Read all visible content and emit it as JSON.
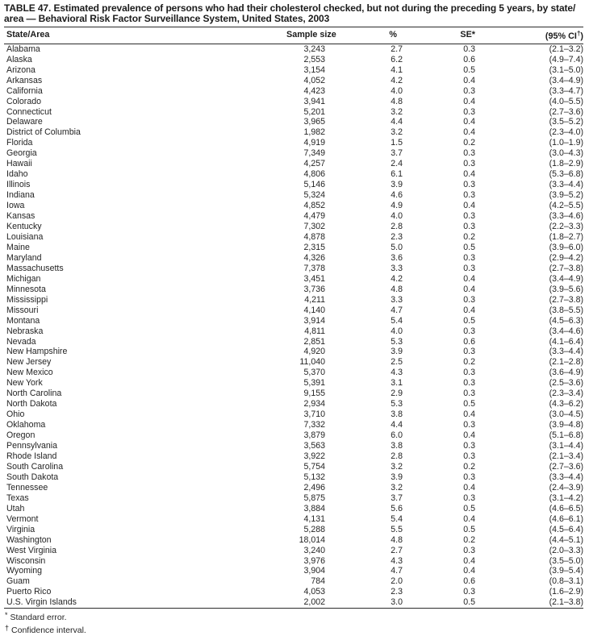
{
  "table": {
    "title_line1": "TABLE 47. Estimated prevalence of persons who had their cholesterol checked, but not during the preceding 5 years, by state/",
    "title_line2": "area — Behavioral Risk Factor Surveillance System, United States, 2003",
    "header": {
      "state": "State/Area",
      "sample": "Sample size",
      "pct": "%",
      "se": "SE*",
      "ci_prefix": "(95% CI",
      "ci_sup": "†",
      "ci_suffix": ")"
    },
    "rows": [
      [
        "Alabama",
        "3,243",
        "2.7",
        "0.3",
        "(2.1–3.2)"
      ],
      [
        "Alaska",
        "2,553",
        "6.2",
        "0.6",
        "(4.9–7.4)"
      ],
      [
        "Arizona",
        "3,154",
        "4.1",
        "0.5",
        "(3.1–5.0)"
      ],
      [
        "Arkansas",
        "4,052",
        "4.2",
        "0.4",
        "(3.4–4.9)"
      ],
      [
        "California",
        "4,423",
        "4.0",
        "0.3",
        "(3.3–4.7)"
      ],
      [
        "Colorado",
        "3,941",
        "4.8",
        "0.4",
        "(4.0–5.5)"
      ],
      [
        "Connecticut",
        "5,201",
        "3.2",
        "0.3",
        "(2.7–3.6)"
      ],
      [
        "Delaware",
        "3,965",
        "4.4",
        "0.4",
        "(3.5–5.2)"
      ],
      [
        "District of Columbia",
        "1,982",
        "3.2",
        "0.4",
        "(2.3–4.0)"
      ],
      [
        "Florida",
        "4,919",
        "1.5",
        "0.2",
        "(1.0–1.9)"
      ],
      [
        "Georgia",
        "7,349",
        "3.7",
        "0.3",
        "(3.0–4.3)"
      ],
      [
        "Hawaii",
        "4,257",
        "2.4",
        "0.3",
        "(1.8–2.9)"
      ],
      [
        "Idaho",
        "4,806",
        "6.1",
        "0.4",
        "(5.3–6.8)"
      ],
      [
        "Illinois",
        "5,146",
        "3.9",
        "0.3",
        "(3.3–4.4)"
      ],
      [
        "Indiana",
        "5,324",
        "4.6",
        "0.3",
        "(3.9–5.2)"
      ],
      [
        "Iowa",
        "4,852",
        "4.9",
        "0.4",
        "(4.2–5.5)"
      ],
      [
        "Kansas",
        "4,479",
        "4.0",
        "0.3",
        "(3.3–4.6)"
      ],
      [
        "Kentucky",
        "7,302",
        "2.8",
        "0.3",
        "(2.2–3.3)"
      ],
      [
        "Louisiana",
        "4,878",
        "2.3",
        "0.2",
        "(1.8–2.7)"
      ],
      [
        "Maine",
        "2,315",
        "5.0",
        "0.5",
        "(3.9–6.0)"
      ],
      [
        "Maryland",
        "4,326",
        "3.6",
        "0.3",
        "(2.9–4.2)"
      ],
      [
        "Massachusetts",
        "7,378",
        "3.3",
        "0.3",
        "(2.7–3.8)"
      ],
      [
        "Michigan",
        "3,451",
        "4.2",
        "0.4",
        "(3.4–4.9)"
      ],
      [
        "Minnesota",
        "3,736",
        "4.8",
        "0.4",
        "(3.9–5.6)"
      ],
      [
        "Mississippi",
        "4,211",
        "3.3",
        "0.3",
        "(2.7–3.8)"
      ],
      [
        "Missouri",
        "4,140",
        "4.7",
        "0.4",
        "(3.8–5.5)"
      ],
      [
        "Montana",
        "3,914",
        "5.4",
        "0.5",
        "(4.5–6.3)"
      ],
      [
        "Nebraska",
        "4,811",
        "4.0",
        "0.3",
        "(3.4–4.6)"
      ],
      [
        "Nevada",
        "2,851",
        "5.3",
        "0.6",
        "(4.1–6.4)"
      ],
      [
        "New Hampshire",
        "4,920",
        "3.9",
        "0.3",
        "(3.3–4.4)"
      ],
      [
        "New Jersey",
        "11,040",
        "2.5",
        "0.2",
        "(2.1–2.8)"
      ],
      [
        "New Mexico",
        "5,370",
        "4.3",
        "0.3",
        "(3.6–4.9)"
      ],
      [
        "New York",
        "5,391",
        "3.1",
        "0.3",
        "(2.5–3.6)"
      ],
      [
        "North Carolina",
        "9,155",
        "2.9",
        "0.3",
        "(2.3–3.4)"
      ],
      [
        "North Dakota",
        "2,934",
        "5.3",
        "0.5",
        "(4.3–6.2)"
      ],
      [
        "Ohio",
        "3,710",
        "3.8",
        "0.4",
        "(3.0–4.5)"
      ],
      [
        "Oklahoma",
        "7,332",
        "4.4",
        "0.3",
        "(3.9–4.8)"
      ],
      [
        "Oregon",
        "3,879",
        "6.0",
        "0.4",
        "(5.1–6.8)"
      ],
      [
        "Pennsylvania",
        "3,563",
        "3.8",
        "0.3",
        "(3.1–4.4)"
      ],
      [
        "Rhode Island",
        "3,922",
        "2.8",
        "0.3",
        "(2.1–3.4)"
      ],
      [
        "South Carolina",
        "5,754",
        "3.2",
        "0.2",
        "(2.7–3.6)"
      ],
      [
        "South Dakota",
        "5,132",
        "3.9",
        "0.3",
        "(3.3–4.4)"
      ],
      [
        "Tennessee",
        "2,496",
        "3.2",
        "0.4",
        "(2.4–3.9)"
      ],
      [
        "Texas",
        "5,875",
        "3.7",
        "0.3",
        "(3.1–4.2)"
      ],
      [
        "Utah",
        "3,884",
        "5.6",
        "0.5",
        "(4.6–6.5)"
      ],
      [
        "Vermont",
        "4,131",
        "5.4",
        "0.4",
        "(4.6–6.1)"
      ],
      [
        "Virginia",
        "5,288",
        "5.5",
        "0.5",
        "(4.5–6.4)"
      ],
      [
        "Washington",
        "18,014",
        "4.8",
        "0.2",
        "(4.4–5.1)"
      ],
      [
        "West Virginia",
        "3,240",
        "2.7",
        "0.3",
        "(2.0–3.3)"
      ],
      [
        "Wisconsin",
        "3,976",
        "4.3",
        "0.4",
        "(3.5–5.0)"
      ],
      [
        "Wyoming",
        "3,904",
        "4.7",
        "0.4",
        "(3.9–5.4)"
      ],
      [
        "Guam",
        "784",
        "2.0",
        "0.6",
        "(0.8–3.1)"
      ],
      [
        "Puerto Rico",
        "4,053",
        "2.3",
        "0.3",
        "(1.6–2.9)"
      ],
      [
        "U.S. Virgin Islands",
        "2,002",
        "3.0",
        "0.5",
        "(2.1–3.8)"
      ]
    ],
    "footnotes": [
      {
        "sym": "*",
        "text": "Standard error."
      },
      {
        "sym": "†",
        "text": "Confidence interval."
      }
    ]
  }
}
